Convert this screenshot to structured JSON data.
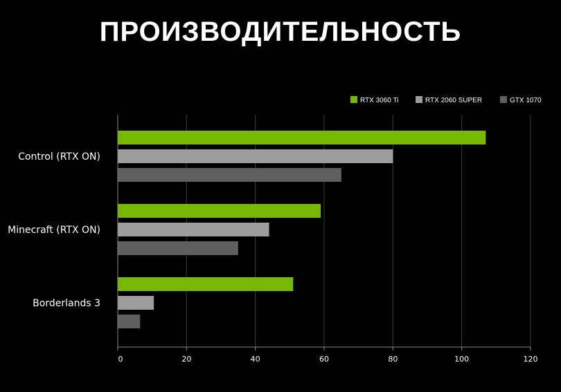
{
  "title": "ПРОИЗВОДИТЕЛЬНОСТЬ",
  "chart_data": {
    "type": "bar",
    "orientation": "horizontal",
    "title": "ПРОИЗВОДИТЕЛЬНОСТЬ",
    "categories": [
      "Control (RTX ON)",
      "Minecraft (RTX ON)",
      "Borderlands 3"
    ],
    "series": [
      {
        "name": "RTX 3060 Ti",
        "color": "#76b900",
        "values": [
          107,
          59,
          51
        ]
      },
      {
        "name": "RTX 2060 SUPER",
        "color": "#9d9d9d",
        "values": [
          80,
          44,
          10.5
        ]
      },
      {
        "name": "GTX 1070",
        "color": "#5f5f5f",
        "values": [
          65,
          35,
          6.5
        ]
      }
    ],
    "xlim": [
      0,
      120
    ],
    "x_ticks": [
      "0",
      "20",
      "40",
      "60",
      "80",
      "100",
      "120"
    ],
    "grid": true,
    "legend_position": "top-right"
  }
}
